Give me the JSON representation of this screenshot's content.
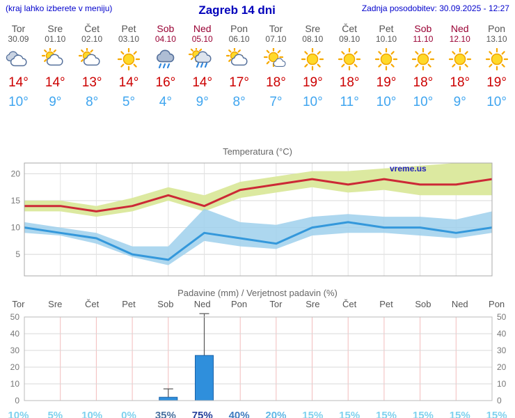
{
  "header": {
    "left_note": "(kraj lahko izberete v meniju)",
    "title": "Zagreb 14 dni",
    "updated": "Zadnja posodobitev: 30.09.2025 - 12:27"
  },
  "watermark": "vreme.us",
  "colors": {
    "header_blue": "#0000cc",
    "weekday_text": "#555555",
    "weekend_text": "#990033",
    "tmax_red": "#cc0000",
    "tmin_blue": "#3fa5ef",
    "max_line": "#cc2936",
    "min_line": "#3498db",
    "max_band": "#dce9a0",
    "min_band": "#9fd0ec",
    "bar_fill": "#2f8fdc",
    "bar_stroke": "#1a62a8",
    "grid_gray": "#d8d8d8",
    "grid_pink": "#f2bcbc"
  },
  "days": [
    {
      "name": "Tor",
      "date": "30.09",
      "weekend": false,
      "icon": "cloudy",
      "tmax": "14°",
      "tmin": "10°"
    },
    {
      "name": "Sre",
      "date": "01.10",
      "weekend": false,
      "icon": "partly-cloudy",
      "tmax": "14°",
      "tmin": "9°"
    },
    {
      "name": "Čet",
      "date": "02.10",
      "weekend": false,
      "icon": "partly-cloudy",
      "tmax": "13°",
      "tmin": "8°"
    },
    {
      "name": "Pet",
      "date": "03.10",
      "weekend": false,
      "icon": "sunny",
      "tmax": "14°",
      "tmin": "5°"
    },
    {
      "name": "Sob",
      "date": "04.10",
      "weekend": true,
      "icon": "rain",
      "tmax": "16°",
      "tmin": "4°"
    },
    {
      "name": "Ned",
      "date": "05.10",
      "weekend": true,
      "icon": "showers",
      "tmax": "14°",
      "tmin": "9°"
    },
    {
      "name": "Pon",
      "date": "06.10",
      "weekend": false,
      "icon": "partly-cloudy",
      "tmax": "17°",
      "tmin": "8°"
    },
    {
      "name": "Tor",
      "date": "07.10",
      "weekend": false,
      "icon": "mostly-sunny",
      "tmax": "18°",
      "tmin": "7°"
    },
    {
      "name": "Sre",
      "date": "08.10",
      "weekend": false,
      "icon": "sunny",
      "tmax": "19°",
      "tmin": "10°"
    },
    {
      "name": "Čet",
      "date": "09.10",
      "weekend": false,
      "icon": "sunny",
      "tmax": "18°",
      "tmin": "11°"
    },
    {
      "name": "Pet",
      "date": "10.10",
      "weekend": false,
      "icon": "sunny",
      "tmax": "19°",
      "tmin": "10°"
    },
    {
      "name": "Sob",
      "date": "11.10",
      "weekend": true,
      "icon": "sunny",
      "tmax": "18°",
      "tmin": "10°"
    },
    {
      "name": "Ned",
      "date": "12.10",
      "weekend": true,
      "icon": "sunny",
      "tmax": "18°",
      "tmin": "9°"
    },
    {
      "name": "Pon",
      "date": "13.10",
      "weekend": false,
      "icon": "sunny",
      "tmax": "19°",
      "tmin": "10°"
    }
  ],
  "prob_color_scale": [
    {
      "min": 70,
      "color": "#24409b"
    },
    {
      "min": 40,
      "color": "#3f7cc0"
    },
    {
      "min": 30,
      "color": "#49719f"
    },
    {
      "min": 20,
      "color": "#5fb8e6"
    },
    {
      "min": 0,
      "color": "#7fd2ee"
    }
  ],
  "chart_data": [
    {
      "type": "line",
      "title": "Temperatura (°C)",
      "categories": [
        "Tor 30.09",
        "Sre 01.10",
        "Čet 02.10",
        "Pet 03.10",
        "Sob 04.10",
        "Ned 05.10",
        "Pon 06.10",
        "Tor 07.10",
        "Sre 08.10",
        "Čet 09.10",
        "Pet 10.10",
        "Sob 11.10",
        "Ned 12.10",
        "Pon 13.10"
      ],
      "series": [
        {
          "name": "max-temperature",
          "color": "#cc2936",
          "values": [
            14,
            14,
            13,
            14,
            16,
            14,
            17,
            18,
            19,
            18,
            19,
            18,
            18,
            19
          ]
        },
        {
          "name": "min-temperature",
          "color": "#3498db",
          "values": [
            10,
            9,
            8,
            5,
            4,
            9,
            8,
            7,
            10,
            11,
            10,
            10,
            9,
            10
          ]
        }
      ],
      "bands": [
        {
          "name": "max-range",
          "color": "#dce9a0",
          "opacity": 1,
          "upper": [
            15,
            15,
            14,
            15.5,
            17.5,
            16,
            18.5,
            19.5,
            20.5,
            20.5,
            21,
            21.5,
            22,
            23
          ],
          "lower": [
            13,
            13,
            12,
            13,
            15,
            13,
            15.5,
            16.5,
            17.5,
            16.5,
            17,
            16,
            16,
            16
          ]
        },
        {
          "name": "min-range",
          "color": "#9fd0ec",
          "opacity": 0.85,
          "upper": [
            11,
            10,
            9,
            6.5,
            6.5,
            13.5,
            11,
            10.5,
            12,
            12.5,
            12,
            12,
            11.5,
            13
          ],
          "lower": [
            9,
            8.5,
            7,
            4.5,
            3,
            7.5,
            6.5,
            6,
            8.5,
            9,
            9,
            8.5,
            8,
            9
          ]
        }
      ],
      "yticks": [
        5,
        10,
        15,
        20
      ],
      "ylim": [
        1,
        22
      ],
      "grid": true,
      "watermark": "vreme.us"
    },
    {
      "type": "bar",
      "title": "Padavine (mm) / Verjetnost padavin (%)",
      "categories": [
        "Tor",
        "Sre",
        "Čet",
        "Pet",
        "Sob",
        "Ned",
        "Pon",
        "Tor",
        "Sre",
        "Čet",
        "Pet",
        "Sob",
        "Ned",
        "Pon"
      ],
      "weekend": [
        false,
        false,
        false,
        false,
        true,
        true,
        false,
        false,
        false,
        false,
        false,
        true,
        true,
        false
      ],
      "precip_mm": [
        0,
        0,
        0,
        0,
        2,
        27,
        0,
        0,
        0,
        0,
        0,
        0,
        0,
        0
      ],
      "precip_max_mm": [
        0,
        0,
        0,
        0,
        7,
        52,
        0,
        0,
        0,
        0,
        0,
        0,
        0,
        0
      ],
      "probability_pct": [
        10,
        5,
        10,
        0,
        35,
        75,
        40,
        20,
        15,
        15,
        15,
        15,
        15,
        15
      ],
      "probability_labels": [
        "10%",
        "5%",
        "10%",
        "0%",
        "35%",
        "75%",
        "40%",
        "20%",
        "15%",
        "15%",
        "15%",
        "15%",
        "15%",
        "15%"
      ],
      "yticks": [
        0,
        10,
        20,
        30,
        40,
        50
      ],
      "ylim": [
        0,
        52
      ],
      "grid": true
    }
  ]
}
